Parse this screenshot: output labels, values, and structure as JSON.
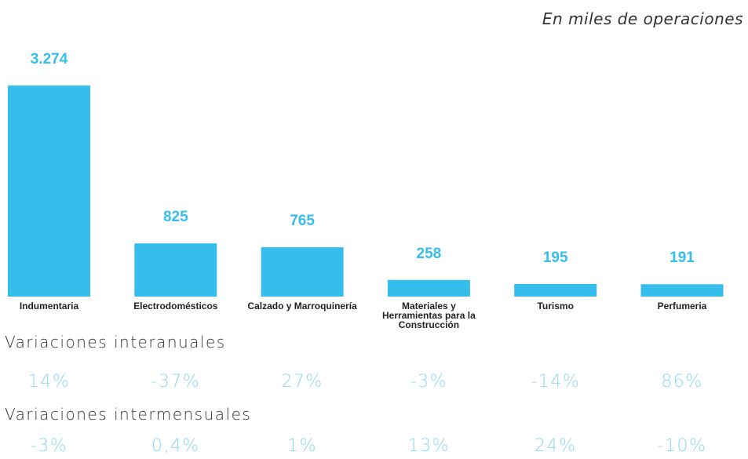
{
  "chart_data": {
    "type": "bar",
    "subtitle": "En miles de operaciones",
    "categories": [
      "Indumentaria",
      "Electrodomésticos",
      "Calzado y Marroquinería",
      "Materiales y Herramientas para la Construcción",
      "Turismo",
      "Perfumeria"
    ],
    "values": [
      3274,
      825,
      765,
      258,
      195,
      191
    ],
    "value_labels": [
      "3.274",
      "825",
      "765",
      "258",
      "195",
      "191"
    ],
    "color": "#35bdec",
    "rows": [
      {
        "name": "Variaciones interanuales",
        "values": [
          "14%",
          "-37%",
          "27%",
          "-3%",
          "-14%",
          "86%"
        ]
      },
      {
        "name": "Variaciones intermensuales",
        "values": [
          "-3%",
          "0,4%",
          "1%",
          "13%",
          "24%",
          "-10%"
        ]
      }
    ]
  }
}
